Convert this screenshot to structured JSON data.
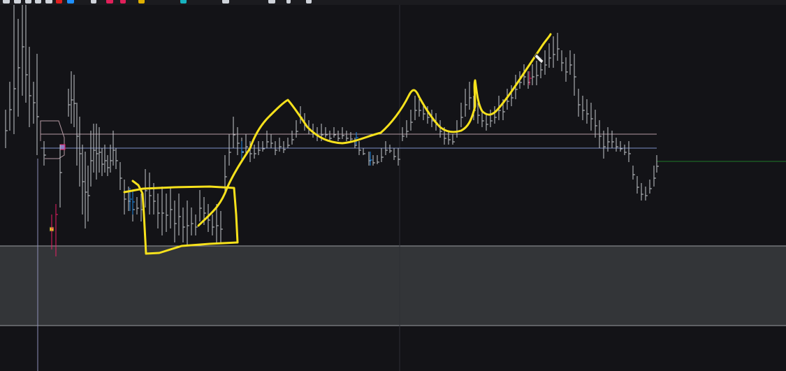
{
  "toolbar": {
    "items": [
      {
        "name": "pencil-tool-icon",
        "color": "#cfd3da"
      },
      {
        "name": "rectangle-tool-icon",
        "color": "#cfd3da"
      },
      {
        "name": "circle-tool-icon",
        "color": "#cfd3da"
      },
      {
        "name": "path-tool-icon",
        "color": "#cfd3da"
      },
      {
        "name": "fib-tool-icon",
        "color": "#cfd3da"
      },
      {
        "name": "record-icon",
        "color": "#e02020"
      },
      {
        "name": "color-swatch-icon",
        "color": "#1e90ff"
      },
      {
        "name": "undo-icon",
        "color": "#cfd3da"
      },
      {
        "name": "alert-icon",
        "color": "#e0205a"
      },
      {
        "name": "alert-icon",
        "color": "#e0205a"
      },
      {
        "name": "lock-icon",
        "color": "#e0b000"
      },
      {
        "name": "layout-icon",
        "color": "#17b3c0"
      },
      {
        "name": "settings-icon",
        "color": "#cfd3da"
      }
    ]
  },
  "colors": {
    "background": "#131317",
    "bars": "#c6c9ce",
    "bars_down": "#1e88e5",
    "bars_alert": "#e91e63",
    "annotation": "#f6e11c",
    "level_upper": "#b59aa3",
    "level_lower": "#7e8fc7",
    "current_price_line": "#1f7a2a",
    "volume_panel": "#3a3c3e",
    "crosshair": "#2c2e33"
  },
  "chart_data": {
    "type": "ohlc",
    "x": [],
    "values": [],
    "levels": [
      "resistance",
      "support"
    ]
  }
}
